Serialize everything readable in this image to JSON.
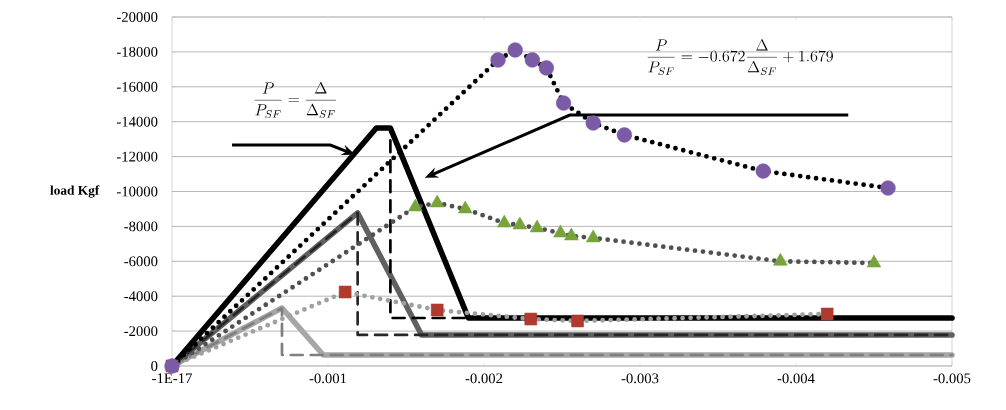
{
  "chart_data": {
    "type": "line",
    "ylabel": "load Kgf",
    "xlim": [
      0,
      -0.005
    ],
    "ylim": [
      0,
      -20000
    ],
    "xticks": [
      {
        "value": 0,
        "label": "-1E-17"
      },
      -0.001,
      -0.002,
      -0.003,
      -0.004,
      -0.005
    ],
    "yticks": [
      0,
      -2000,
      -4000,
      -6000,
      -8000,
      -10000,
      -12000,
      -14000,
      -16000,
      -18000,
      -20000
    ],
    "grid": "y",
    "annotations": [
      "\\frac{P}{P_{SF}}=\\frac{\\Delta}{\\Delta_{SF}}",
      "\\frac{P}{P_{SF}}=-0.672\\frac{\\Delta}{\\Delta_{SF}}+1.679"
    ],
    "series": [
      {
        "color": "#a6a6a6",
        "line_style": "solid",
        "x": [
          0,
          -0.000705,
          -0.00097,
          -0.005
        ],
        "values": [
          0,
          -3320,
          -630,
          -630
        ]
      },
      {
        "color": "#606060",
        "line_style": "solid",
        "x": [
          0,
          -0.00119,
          -0.0016,
          -0.005
        ],
        "values": [
          0,
          -8770,
          -1780,
          -1780
        ]
      },
      {
        "color": "#000000",
        "line_style": "solid",
        "x": [
          0,
          -0.00131,
          -0.0014,
          -0.0019,
          -0.005
        ],
        "values": [
          0,
          -13640,
          -13640,
          -2750,
          -2750
        ]
      },
      {
        "color": "#7f7f7f",
        "line_style": "dashed",
        "x": [
          0,
          -0.000705,
          -0.000705,
          -0.005
        ],
        "values": [
          0,
          -3320,
          -630,
          -630
        ]
      },
      {
        "color": "#262626",
        "line_style": "dashed",
        "x": [
          0,
          -0.00119,
          -0.00119,
          -0.005
        ],
        "values": [
          0,
          -8770,
          -1780,
          -1780
        ]
      },
      {
        "color": "#000000",
        "line_style": "dashed",
        "x": [
          0,
          -0.00131,
          -0.0014,
          -0.0014,
          -0.005
        ],
        "values": [
          0,
          -13640,
          -13640,
          -2750,
          -2750
        ]
      },
      {
        "color": "#a0a0a0",
        "line_style": "dotted",
        "marker": "square",
        "colors": [
          "#b03a2e",
          "#b03a2e",
          "#b03a2e",
          "#b03a2e",
          "#b03a2e",
          "#b03a2e"
        ],
        "x": [
          0,
          -0.00111,
          -0.0017,
          -0.0023,
          -0.0026,
          -0.0042
        ],
        "values": [
          0,
          -4240,
          -3210,
          -2690,
          -2580,
          -2980
        ]
      },
      {
        "color": "#505050",
        "line_style": "dotted",
        "marker": "triangle",
        "colors": [
          "#77a33a",
          "#77a33a",
          "#77a33a",
          "#77a33a",
          "#77a33a",
          "#77a33a",
          "#77a33a",
          "#77a33a",
          "#77a33a",
          "#77a33a",
          "#77a33a",
          "#77a33a"
        ],
        "x": [
          0,
          -0.00156,
          -0.0017,
          -0.00188,
          -0.00213,
          -0.00223,
          -0.00234,
          -0.00249,
          -0.00256,
          -0.0027,
          -0.0039,
          -0.0045
        ],
        "values": [
          0,
          -9110,
          -9340,
          -9000,
          -8190,
          -8080,
          -7910,
          -7620,
          -7450,
          -7340,
          -6000,
          -5900
        ]
      },
      {
        "color": "#000000",
        "line_style": "dotted",
        "marker": "circle",
        "colors": [
          "#7b5aa6",
          "#7b5aa6",
          "#7b5aa6",
          "#7b5aa6",
          "#7b5aa6",
          "#7b5aa6",
          "#7b5aa6",
          "#7b5aa6",
          "#7b5aa6",
          "#7b5aa6"
        ],
        "x": [
          0,
          -0.00209,
          -0.0022,
          -0.00231,
          -0.0024,
          -0.00251,
          -0.0027,
          -0.0029,
          -0.00379,
          -0.00459
        ],
        "values": [
          0,
          -17540,
          -18110,
          -17540,
          -17080,
          -15070,
          -13930,
          -13240,
          -11170,
          -10200
        ]
      }
    ]
  }
}
